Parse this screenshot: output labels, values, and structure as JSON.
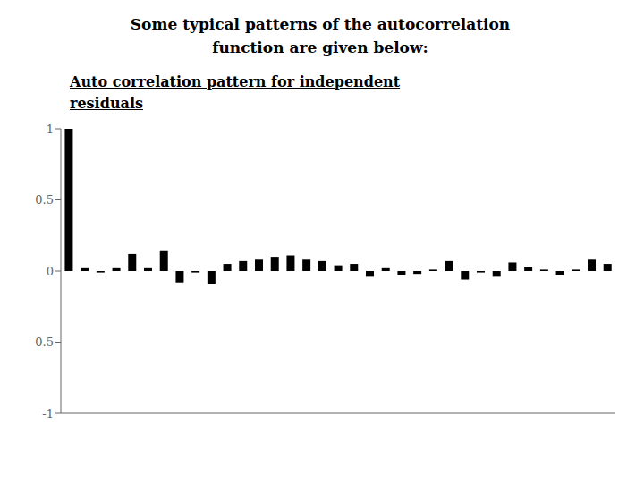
{
  "chart_data": {
    "type": "bar",
    "title": "Some typical patterns of the autocorrelation\nfunction are given below:",
    "subtitle": "Auto correlation pattern for independent\nresiduals",
    "values": [
      1.0,
      0.02,
      -0.01,
      0.02,
      0.12,
      0.02,
      0.14,
      -0.08,
      -0.01,
      -0.09,
      0.05,
      0.07,
      0.08,
      0.1,
      0.11,
      0.08,
      0.07,
      0.04,
      0.05,
      -0.04,
      0.02,
      -0.03,
      -0.02,
      0.01,
      0.07,
      -0.06,
      -0.01,
      -0.04,
      0.06,
      0.03,
      0.01,
      -0.03,
      0.01,
      0.08,
      0.05
    ],
    "color": "#000000",
    "ylim": [
      -1.0,
      1.0
    ],
    "yticks": [
      -1,
      -0.5,
      0,
      0.5,
      1
    ],
    "grid": false,
    "tick_labels": "y"
  }
}
